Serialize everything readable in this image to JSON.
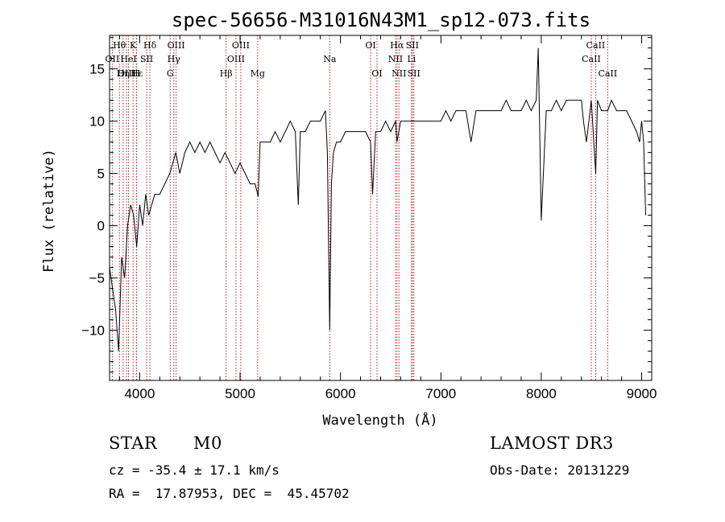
{
  "chart_data": {
    "type": "line",
    "title": "spec-56656-M31016N43M1_sp12-073.fits",
    "xlabel": "Wavelength (Å)",
    "ylabel": "Flux (relative)",
    "xlim": [
      3700,
      9100
    ],
    "ylim": [
      -14.8,
      18.2
    ],
    "xticks": [
      4000,
      5000,
      6000,
      7000,
      8000,
      9000
    ],
    "yticks": [
      -10,
      -5,
      0,
      5,
      10,
      15
    ],
    "ytick_labels": [
      "−10",
      "−5",
      "0",
      "5",
      "10",
      "15"
    ],
    "spectral_lines": [
      {
        "label": "Hθ",
        "wavelength": 3798,
        "row": 0
      },
      {
        "label": "OII",
        "wavelength": 3727,
        "row": 1
      },
      {
        "label": "OIII",
        "wavelength": 3869,
        "row": 2
      },
      {
        "label": "K",
        "wavelength": 3934,
        "row": 0
      },
      {
        "label": "Hε",
        "wavelength": 3970,
        "row": 2
      },
      {
        "label": "H",
        "wavelength": 3968,
        "row": 2
      },
      {
        "label": "Hη",
        "wavelength": 3835,
        "row": 2
      },
      {
        "label": "HeI",
        "wavelength": 3889,
        "row": 1
      },
      {
        "label": "SII",
        "wavelength": 4070,
        "row": 1
      },
      {
        "label": "Hδ",
        "wavelength": 4102,
        "row": 0
      },
      {
        "label": "OIII",
        "wavelength": 4363,
        "row": 0
      },
      {
        "label": "Hγ",
        "wavelength": 4340,
        "row": 1
      },
      {
        "label": "G",
        "wavelength": 4304,
        "row": 2
      },
      {
        "label": "Hβ",
        "wavelength": 4861,
        "row": 2
      },
      {
        "label": "OIII",
        "wavelength": 4959,
        "row": 1
      },
      {
        "label": "OIII",
        "wavelength": 5007,
        "row": 0
      },
      {
        "label": "Mg",
        "wavelength": 5175,
        "row": 2
      },
      {
        "label": "Na",
        "wavelength": 5893,
        "row": 1
      },
      {
        "label": "OI",
        "wavelength": 6300,
        "row": 0
      },
      {
        "label": "OI",
        "wavelength": 6364,
        "row": 2
      },
      {
        "label": "Hα",
        "wavelength": 6563,
        "row": 0
      },
      {
        "label": "NII",
        "wavelength": 6548,
        "row": 1
      },
      {
        "label": "NII",
        "wavelength": 6583,
        "row": 2
      },
      {
        "label": "SII",
        "wavelength": 6716,
        "row": 0
      },
      {
        "label": "Li",
        "wavelength": 6708,
        "row": 1
      },
      {
        "label": "SII",
        "wavelength": 6731,
        "row": 2
      },
      {
        "label": "CaII",
        "wavelength": 8542,
        "row": 0
      },
      {
        "label": "CaII",
        "wavelength": 8498,
        "row": 1
      },
      {
        "label": "CaII",
        "wavelength": 8662,
        "row": 2
      }
    ],
    "series": [
      {
        "name": "flux",
        "x": [
          3700,
          3730,
          3760,
          3790,
          3820,
          3850,
          3880,
          3910,
          3940,
          3970,
          4000,
          4030,
          4060,
          4090,
          4120,
          4150,
          4200,
          4250,
          4300,
          4330,
          4360,
          4400,
          4450,
          4500,
          4550,
          4600,
          4650,
          4700,
          4750,
          4800,
          4850,
          4900,
          4950,
          5000,
          5050,
          5100,
          5150,
          5180,
          5200,
          5250,
          5300,
          5350,
          5400,
          5450,
          5500,
          5550,
          5580,
          5600,
          5650,
          5700,
          5750,
          5800,
          5850,
          5870,
          5893,
          5910,
          5930,
          5960,
          6000,
          6050,
          6100,
          6150,
          6200,
          6250,
          6300,
          6320,
          6350,
          6400,
          6450,
          6500,
          6550,
          6563,
          6600,
          6650,
          6700,
          6750,
          6800,
          6850,
          6900,
          6950,
          7000,
          7050,
          7100,
          7150,
          7200,
          7250,
          7300,
          7350,
          7400,
          7450,
          7500,
          7550,
          7600,
          7650,
          7700,
          7750,
          7800,
          7850,
          7900,
          7950,
          7970,
          8000,
          8050,
          8100,
          8150,
          8200,
          8250,
          8300,
          8350,
          8400,
          8420,
          8450,
          8498,
          8542,
          8560,
          8600,
          8662,
          8700,
          8750,
          8800,
          8850,
          8900,
          8950,
          8980,
          9000,
          9020,
          9040
        ],
        "values": [
          -4,
          -6,
          -8,
          -12,
          -3,
          -5,
          0,
          2,
          1,
          -2,
          2,
          0,
          3,
          1,
          2,
          3,
          3,
          4,
          5,
          6,
          7,
          5,
          7,
          8,
          7,
          8,
          7,
          8,
          7,
          6,
          7,
          6,
          5,
          6,
          5,
          4,
          4,
          2.8,
          8,
          8,
          8,
          9,
          8,
          9,
          10,
          9,
          2,
          9,
          9,
          10,
          10,
          10,
          11,
          7,
          -10,
          4,
          7,
          8,
          8,
          9,
          9,
          9,
          9,
          9,
          8,
          3,
          9,
          9,
          10,
          9,
          10,
          8,
          10,
          10,
          10,
          10,
          10,
          10,
          10,
          10,
          10,
          11,
          10,
          11,
          11,
          11,
          8,
          11,
          11,
          11,
          11,
          11,
          11,
          12,
          11,
          11,
          11,
          12,
          11,
          12,
          17,
          0.5,
          11,
          11,
          12,
          11,
          12,
          12,
          12,
          12,
          10,
          8,
          12,
          5,
          12,
          11,
          11,
          12,
          11,
          11,
          11,
          10,
          9,
          8,
          10,
          8,
          1
        ]
      }
    ]
  },
  "info": {
    "class": "STAR",
    "subclass": "M0",
    "survey": "LAMOST DR3",
    "cz": "cz = -35.4 ± 17.1 km/s",
    "obs_date": "Obs-Date: 20131229",
    "radec": "RA =  17.87953, DEC =  45.45702"
  }
}
